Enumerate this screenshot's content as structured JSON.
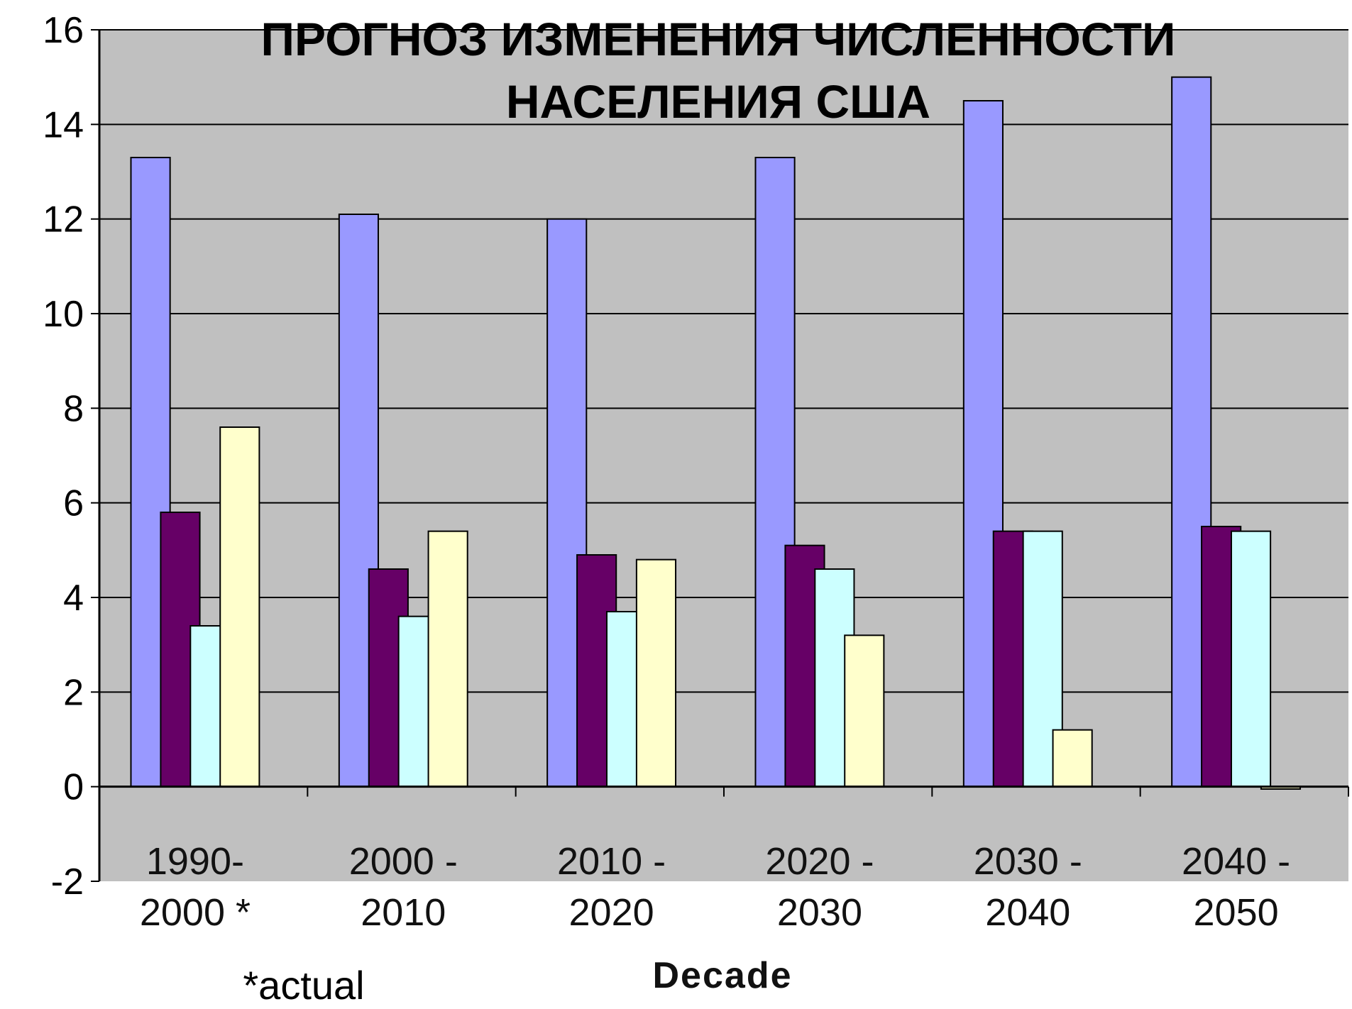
{
  "chart_data": {
    "type": "bar",
    "title_lines": [
      "ПРОГНОЗ ИЗМЕНЕНИЯ ЧИСЛЕННОСТИ",
      "НАСЕЛЕНИЯ США"
    ],
    "xlabel": "Decade",
    "ylabel": "",
    "note": "*actual",
    "categories": [
      [
        "1990-",
        "2000 *"
      ],
      [
        "2000 -",
        "2010"
      ],
      [
        "2010 -",
        "2020"
      ],
      [
        "2020 -",
        "2030"
      ],
      [
        "2030 -",
        "2040"
      ],
      [
        "2040 -",
        "2050"
      ]
    ],
    "ylim": [
      -2,
      16
    ],
    "yticks": [
      -2,
      0,
      2,
      4,
      6,
      8,
      10,
      12,
      14,
      16
    ],
    "grid": true,
    "legend": "none",
    "series": [
      {
        "values": [
          13.3,
          12.1,
          12.0,
          13.3,
          14.5,
          15.0
        ],
        "color": "#9999ff"
      },
      {
        "values": [
          5.8,
          4.6,
          4.9,
          5.1,
          5.4,
          5.5
        ],
        "color": "#660066"
      },
      {
        "values": [
          3.4,
          3.6,
          3.7,
          4.6,
          5.4,
          5.4
        ],
        "color": "#ccffff"
      },
      {
        "values": [
          7.6,
          5.4,
          4.8,
          3.2,
          1.2,
          -0.05
        ],
        "color": "#ffffcc"
      }
    ],
    "plot_background": "#c0c0c0"
  }
}
